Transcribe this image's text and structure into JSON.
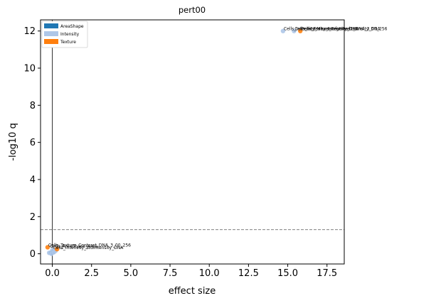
{
  "chart_data": {
    "type": "scatter",
    "title": "pert00",
    "xlabel": "effect size",
    "ylabel": "-log10 q",
    "xlim": [
      -0.75,
      18.6
    ],
    "ylim": [
      -0.55,
      12.6
    ],
    "xticks": [
      0.0,
      2.5,
      5.0,
      7.5,
      10.0,
      12.5,
      15.0,
      17.5
    ],
    "xtick_labels": [
      "0.0",
      "2.5",
      "5.0",
      "7.5",
      "10.0",
      "12.5",
      "15.0",
      "17.5"
    ],
    "yticks": [
      0,
      2,
      4,
      6,
      8,
      10,
      12
    ],
    "ytick_labels": [
      "0",
      "2",
      "4",
      "6",
      "8",
      "10",
      "12"
    ],
    "threshold_line": {
      "y": 1.3,
      "style": "dashed",
      "color": "#808080"
    },
    "vline": {
      "x": 0.0,
      "color": "#000000"
    },
    "legend": {
      "position": "top-left",
      "entries": [
        {
          "label": "AreaShape",
          "color": "#1f77b4"
        },
        {
          "label": "Intensity",
          "color": "#aec7e8"
        },
        {
          "label": "Texture",
          "color": "#ff7f0e"
        }
      ]
    },
    "series": [
      {
        "name": "AreaShape",
        "color": "#1f77b4",
        "points": [
          {
            "x": -0.1,
            "y": 0.05
          },
          {
            "x": 0.05,
            "y": 0.1
          }
        ]
      },
      {
        "name": "Intensity",
        "color": "#aec7e8",
        "points": [
          {
            "x": 14.7,
            "y": 12.0
          },
          {
            "x": 15.4,
            "y": 12.0
          },
          {
            "x": -0.2,
            "y": 0.05
          },
          {
            "x": -0.05,
            "y": 0.0
          },
          {
            "x": 0.1,
            "y": 0.08
          },
          {
            "x": 0.2,
            "y": 0.15
          },
          {
            "x": 0.0,
            "y": 0.2
          }
        ]
      },
      {
        "name": "Texture",
        "color": "#ff7f0e",
        "points": [
          {
            "x": 15.8,
            "y": 12.0
          },
          {
            "x": -0.3,
            "y": 0.35
          },
          {
            "x": 0.3,
            "y": 0.25
          }
        ]
      }
    ],
    "annotations": [
      {
        "x": 14.7,
        "y": 12.0,
        "text": "Cells_Intensity_MeanIntensity_DNA"
      },
      {
        "x": 15.4,
        "y": 12.0,
        "text": "Cells_Intensity_IntegratedIntensity_DNA"
      },
      {
        "x": 15.8,
        "y": 12.0,
        "text": "Cells_Texture_InfoMeas1_DNA_3_00_256"
      },
      {
        "x": -0.3,
        "y": 0.35,
        "text": "Cells_Texture_Contrast_DNA_3_00_256"
      },
      {
        "x": -0.2,
        "y": 0.3,
        "text": "Cells_AreaShape_Area"
      },
      {
        "x": 0.0,
        "y": 0.22,
        "text": "Cells_Intensity_StdIntensity_DNA"
      }
    ]
  }
}
